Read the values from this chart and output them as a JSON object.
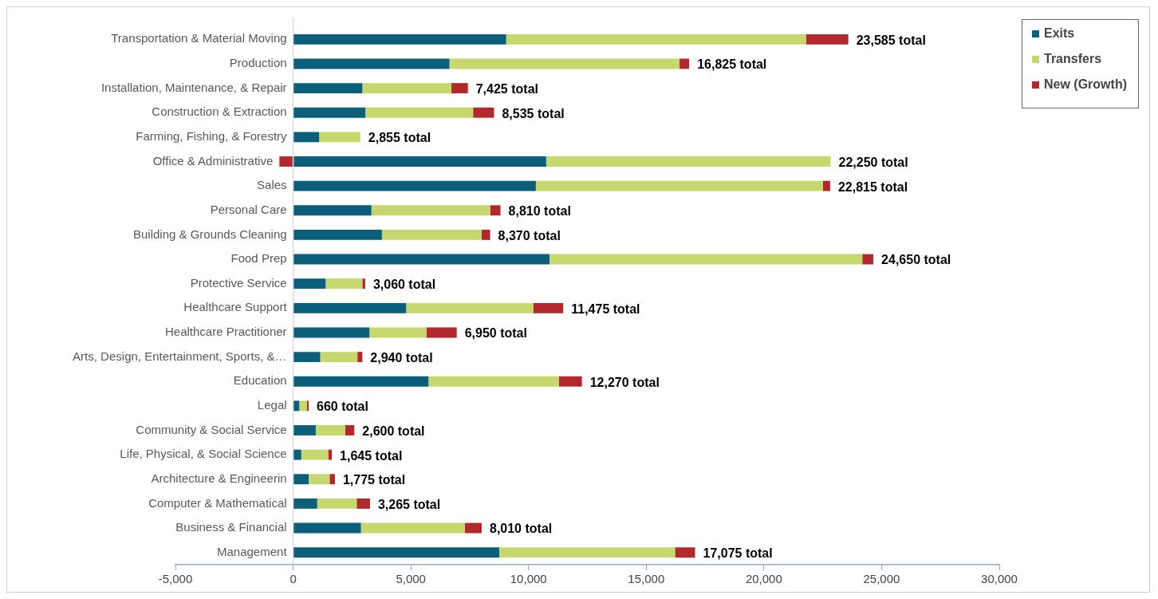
{
  "chart_data": {
    "type": "bar",
    "orientation": "horizontal",
    "stacked": true,
    "categories": [
      "Transportation & Material Moving",
      "Production",
      "Installation, Maintenance, & Repair",
      "Construction & Extraction",
      "Farming, Fishing, & Forestry",
      "Office & Administrative",
      "Sales",
      "Personal Care",
      "Building & Grounds Cleaning",
      "Food Prep",
      "Protective Service",
      "Healthcare Support",
      "Healthcare Practitioner",
      "Arts, Design, Entertainment, Sports, &…",
      "Education",
      "Legal",
      "Community & Social Service",
      "Life, Physical, & Social Science",
      "Architecture & Engineerin",
      "Computer & Mathematical",
      "Business & Financial",
      "Management"
    ],
    "series": [
      {
        "name": "Exits",
        "color": "#0b5f7a",
        "values": [
          9050,
          6640,
          2940,
          3070,
          1105,
          10750,
          10310,
          3325,
          3770,
          10890,
          1380,
          4800,
          3240,
          1150,
          5750,
          260,
          960,
          345,
          660,
          1020,
          2880,
          8755
        ]
      },
      {
        "name": "Transfers",
        "color": "#c5d86d",
        "values": [
          12740,
          9775,
          3785,
          4575,
          1750,
          12085,
          12200,
          5045,
          4235,
          13290,
          1560,
          5400,
          2425,
          1580,
          5540,
          330,
          1255,
          1145,
          890,
          1680,
          4415,
          7470
        ]
      },
      {
        "name": "New (Growth)",
        "color": "#b3282d",
        "values": [
          1795,
          410,
          700,
          890,
          0,
          -585,
          305,
          440,
          365,
          470,
          120,
          1275,
          1285,
          210,
          980,
          70,
          385,
          155,
          225,
          565,
          715,
          850
        ]
      }
    ],
    "totals": [
      "23,585 total",
      "16,825 total",
      "7,425 total",
      "8,535 total",
      "2,855 total",
      "22,250 total",
      "22,815 total",
      "8,810 total",
      "8,370 total",
      "24,650 total",
      "3,060 total",
      "11,475 total",
      "6,950 total",
      "2,940 total",
      "12,270 total",
      "660 total",
      "2,600 total",
      "1,645 total",
      "1,775 total",
      "3,265 total",
      "8,010 total",
      "17,075 total"
    ],
    "xlim": [
      -5000,
      30000
    ],
    "xticks": [
      {
        "value": -5000,
        "label": "-5,000"
      },
      0,
      {
        "value": 5000,
        "label": "5,000"
      },
      {
        "value": 10000,
        "label": "10,000"
      },
      {
        "value": 15000,
        "label": "15,000"
      },
      {
        "value": 20000,
        "label": "20,000"
      },
      {
        "value": 25000,
        "label": "25,000"
      },
      {
        "value": 30000,
        "label": "30,000"
      }
    ],
    "grid": false,
    "legend": "top right"
  }
}
